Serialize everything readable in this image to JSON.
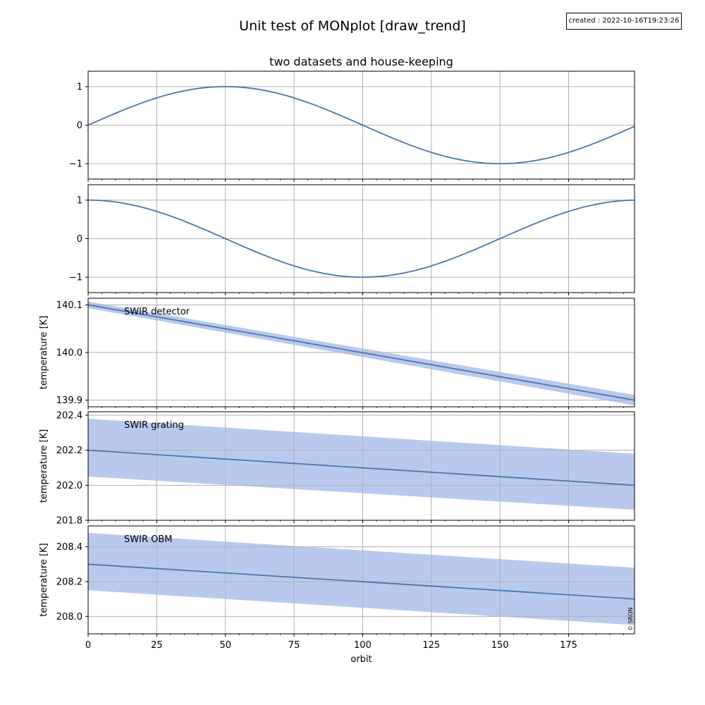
{
  "figure": {
    "title": "Unit test of MONplot [draw_trend]",
    "created_stamp": "created : 2022-10-16T19:23:26",
    "copyright": "© SRON"
  },
  "colors": {
    "line": "#4a77aa",
    "band": "#b9c9ee",
    "grid": "#b0b0b0",
    "axis": "#000000"
  },
  "chart_data": [
    {
      "type": "line",
      "title": "two datasets and house-keeping",
      "label": "",
      "ylabel": "",
      "xlim": [
        0,
        199
      ],
      "ylim": [
        -1.4,
        1.4
      ],
      "yticks": [
        -1,
        0,
        1
      ],
      "ytick_labels": [
        "−1",
        "0",
        "1"
      ],
      "grid": true,
      "series": [
        {
          "function": "sin",
          "period": 200,
          "amplitude": 1,
          "x_range": [
            0,
            199
          ]
        }
      ]
    },
    {
      "type": "line",
      "title": "",
      "label": "",
      "ylabel": "",
      "xlim": [
        0,
        199
      ],
      "ylim": [
        -1.4,
        1.4
      ],
      "yticks": [
        -1,
        0,
        1
      ],
      "ytick_labels": [
        "−1",
        "0",
        "1"
      ],
      "grid": true,
      "series": [
        {
          "function": "cos",
          "period": 200,
          "amplitude": 1,
          "x_range": [
            0,
            199
          ]
        }
      ]
    },
    {
      "type": "area",
      "title": "",
      "label": "SWIR detector",
      "ylabel": "temperature [K]",
      "xlim": [
        0,
        199
      ],
      "ylim": [
        139.886,
        140.114
      ],
      "yticks": [
        139.9,
        140.0,
        140.1
      ],
      "ytick_labels": [
        "139.9",
        "140.0",
        "140.1"
      ],
      "grid": true,
      "series": [
        {
          "x": [
            0,
            199
          ],
          "y": [
            140.1,
            139.9
          ],
          "band_low": [
            140.093,
            139.889
          ],
          "band_high": [
            140.107,
            139.911
          ]
        }
      ]
    },
    {
      "type": "area",
      "title": "",
      "label": "SWIR grating",
      "ylabel": "temperature [K]",
      "xlim": [
        0,
        199
      ],
      "ylim": [
        201.8,
        202.42
      ],
      "yticks": [
        201.8,
        202.0,
        202.2,
        202.4
      ],
      "ytick_labels": [
        "201.8",
        "202.0",
        "202.2",
        "202.4"
      ],
      "grid": true,
      "series": [
        {
          "x": [
            0,
            199
          ],
          "y": [
            202.2,
            202.0
          ],
          "band_low": [
            202.05,
            201.86
          ],
          "band_high": [
            202.38,
            202.18
          ]
        }
      ]
    },
    {
      "type": "area",
      "title": "",
      "label": "SWIR OBM",
      "ylabel": "temperature [K]",
      "xlim": [
        0,
        199
      ],
      "ylim": [
        207.9,
        208.52
      ],
      "yticks": [
        208.0,
        208.2,
        208.4
      ],
      "ytick_labels": [
        "208.0",
        "208.2",
        "208.4"
      ],
      "grid": true,
      "series": [
        {
          "x": [
            0,
            199
          ],
          "y": [
            208.3,
            208.1
          ],
          "band_low": [
            208.15,
            207.95
          ],
          "band_high": [
            208.48,
            208.28
          ]
        }
      ]
    }
  ],
  "x_axis": {
    "label": "orbit",
    "ticks": [
      0,
      25,
      50,
      75,
      100,
      125,
      150,
      175
    ],
    "tick_labels": [
      "0",
      "25",
      "50",
      "75",
      "100",
      "125",
      "150",
      "175"
    ]
  }
}
